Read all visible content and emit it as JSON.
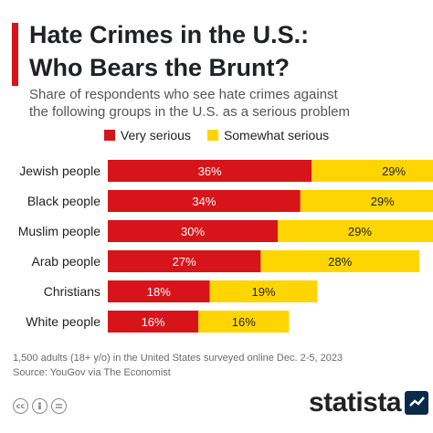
{
  "header": {
    "title_line1": "Hate Crimes in the U.S.:",
    "title_line2": "Who Bears the Brunt?",
    "subtitle_line1": "Share of respondents who see hate crimes against",
    "subtitle_line2": "the following groups in the U.S. as a serious problem"
  },
  "colors": {
    "accent": "#d7141a",
    "very_serious": "#d7141a",
    "somewhat_serious": "#ffd500"
  },
  "chart_data": {
    "type": "bar",
    "orientation": "horizontal",
    "stacked": true,
    "categories": [
      "Jewish people",
      "Black people",
      "Muslim people",
      "Arab people",
      "Christians",
      "White people"
    ],
    "series": [
      {
        "name": "Very serious",
        "values": [
          36,
          34,
          30,
          27,
          18,
          16
        ],
        "color": "#d7141a"
      },
      {
        "name": "Somewhat serious",
        "values": [
          29,
          29,
          29,
          28,
          19,
          16
        ],
        "color": "#ffd500"
      }
    ],
    "value_suffix": "%",
    "legend_position": "top",
    "grid": false
  },
  "footer": {
    "note": "1,500 adults (18+ y/o) in the United States surveyed online Dec. 2-5, 2023",
    "source": "Source: YouGov via The Economist"
  },
  "icons": [
    "cc-icon",
    "person-icon",
    "equals-icon"
  ],
  "brand": {
    "name": "statista"
  }
}
